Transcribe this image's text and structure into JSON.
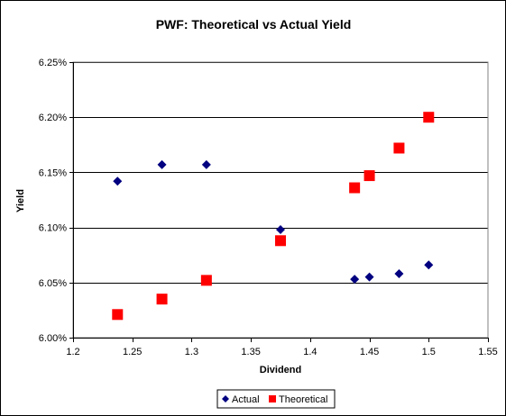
{
  "chart_data": {
    "type": "scatter",
    "title": "PWF: Theoretical vs Actual Yield",
    "xlabel": "Dividend",
    "ylabel": "Yield",
    "xlim": [
      1.2,
      1.55
    ],
    "ylim": [
      0.06,
      0.0625
    ],
    "x_ticks": [
      1.2,
      1.25,
      1.3,
      1.35,
      1.4,
      1.45,
      1.5,
      1.55
    ],
    "x_tick_labels": [
      "1.2",
      "1.25",
      "1.3",
      "1.35",
      "1.4",
      "1.45",
      "1.5",
      "1.55"
    ],
    "y_ticks": [
      0.06,
      0.0605,
      0.061,
      0.0615,
      0.062,
      0.0625
    ],
    "y_tick_labels": [
      "6.00%",
      "6.05%",
      "6.10%",
      "6.15%",
      "6.20%",
      "6.25%"
    ],
    "grid": "horizontal",
    "legend_position": "bottom",
    "series": [
      {
        "name": "Actual",
        "marker": "diamond",
        "color": "#000080",
        "points": [
          {
            "x": 1.2375,
            "y": 0.06142
          },
          {
            "x": 1.275,
            "y": 0.06157
          },
          {
            "x": 1.3125,
            "y": 0.06157
          },
          {
            "x": 1.375,
            "y": 0.06098
          },
          {
            "x": 1.4375,
            "y": 0.06053
          },
          {
            "x": 1.45,
            "y": 0.06055
          },
          {
            "x": 1.475,
            "y": 0.06058
          },
          {
            "x": 1.5,
            "y": 0.06066
          }
        ]
      },
      {
        "name": "Theoretical",
        "marker": "square",
        "color": "#ff0000",
        "points": [
          {
            "x": 1.2375,
            "y": 0.06021
          },
          {
            "x": 1.275,
            "y": 0.06035
          },
          {
            "x": 1.3125,
            "y": 0.06052
          },
          {
            "x": 1.375,
            "y": 0.06088
          },
          {
            "x": 1.4375,
            "y": 0.06136
          },
          {
            "x": 1.45,
            "y": 0.06147
          },
          {
            "x": 1.475,
            "y": 0.06172
          },
          {
            "x": 1.5,
            "y": 0.062
          }
        ]
      }
    ]
  }
}
